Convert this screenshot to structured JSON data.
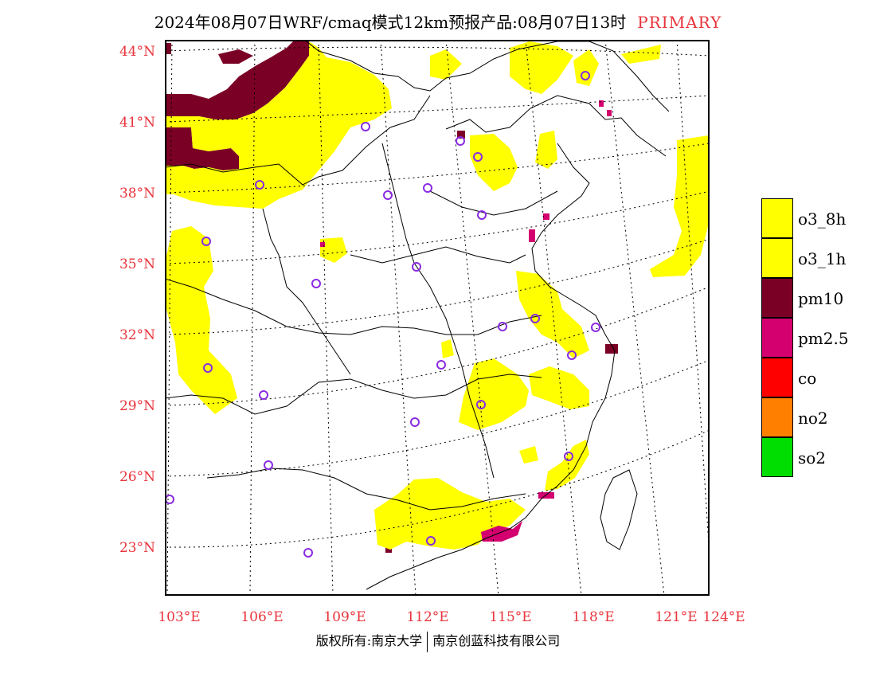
{
  "title": {
    "main": "2024年08月07日WRF/cmaq模式12km预报产品:08月07日13时",
    "tag": "PRIMARY"
  },
  "map": {
    "lat_labels": [
      "44°N",
      "41°N",
      "38°N",
      "35°N",
      "32°N",
      "29°N",
      "26°N",
      "23°N"
    ],
    "lon_labels": [
      "103°E",
      "106°E",
      "109°E",
      "112°E",
      "115°E",
      "118°E",
      "121°E",
      "124°E"
    ],
    "colors": {
      "o3": "#ffff00",
      "pm10": "#7b0026",
      "pm25": "#d4006f",
      "boundary": "#000000",
      "station_ring": "#8a2be2",
      "grid": "#000000"
    }
  },
  "legend": {
    "items": [
      {
        "label": "o3_8h",
        "color": "#ffff00"
      },
      {
        "label": "o3_1h",
        "color": "#ffff00"
      },
      {
        "label": "pm10",
        "color": "#7b0026"
      },
      {
        "label": "pm2.5",
        "color": "#d4006f"
      },
      {
        "label": "co",
        "color": "#ff0000"
      },
      {
        "label": "no2",
        "color": "#ff7f00"
      },
      {
        "label": "so2",
        "color": "#00dd00"
      }
    ]
  },
  "footer": {
    "left": "版权所有:南京大学",
    "right": "南京创蓝科技有限公司"
  }
}
